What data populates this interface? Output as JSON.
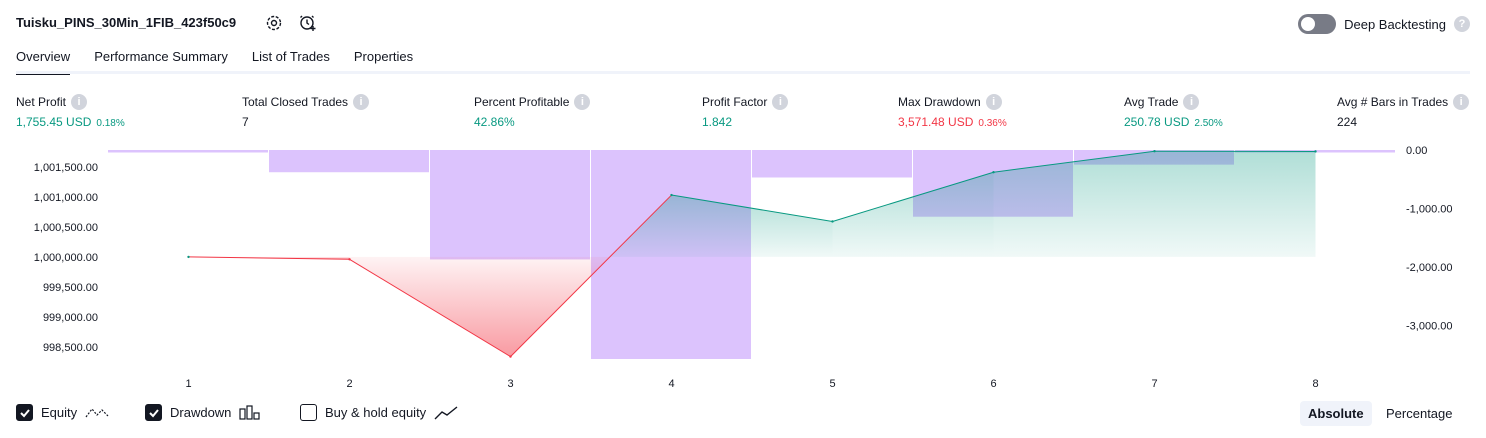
{
  "header": {
    "title": "Tuisku_PINS_30Min_1FIB_423f50c9",
    "deep_backtesting_label": "Deep Backtesting",
    "deep_backtesting_on": false
  },
  "tabs": [
    {
      "label": "Overview",
      "active": true
    },
    {
      "label": "Performance Summary"
    },
    {
      "label": "List of Trades"
    },
    {
      "label": "Properties"
    }
  ],
  "stats": {
    "net_profit": {
      "label": "Net Profit",
      "value": "1,755.45 USD",
      "pct": "0.18%"
    },
    "total_closed_trades": {
      "label": "Total Closed Trades",
      "value": "7"
    },
    "percent_profitable": {
      "label": "Percent Profitable",
      "value": "42.86%"
    },
    "profit_factor": {
      "label": "Profit Factor",
      "value": "1.842"
    },
    "max_drawdown": {
      "label": "Max Drawdown",
      "value": "3,571.48 USD",
      "pct": "0.36%"
    },
    "avg_trade": {
      "label": "Avg Trade",
      "value": "250.78 USD",
      "pct": "2.50%"
    },
    "avg_bars": {
      "label": "Avg # Bars in Trades",
      "value": "224"
    }
  },
  "chart_data": {
    "type": "line",
    "x": [
      1,
      2,
      3,
      4,
      5,
      6,
      7,
      8
    ],
    "x_tick_labels": [
      "1",
      "2",
      "3",
      "4",
      "5",
      "6",
      "7",
      "8"
    ],
    "series": [
      {
        "name": "Equity",
        "axis": "left",
        "values": [
          1000000.0,
          999960,
          998340,
          1001030,
          1000590,
          1001410,
          1001760,
          1001755.45
        ]
      },
      {
        "name": "Drawdown",
        "axis": "right",
        "type": "bar",
        "values": [
          0,
          -380,
          -1870,
          -3571.48,
          -470,
          -1140,
          -250,
          -30
        ]
      }
    ],
    "left_axis": {
      "ylim": [
        998300,
        1001780
      ],
      "ticks": [
        1001500,
        1001000,
        1000500,
        1000000,
        999500,
        999000,
        998500
      ],
      "tick_labels": [
        "1,001,500.00",
        "1,001,000.00",
        "1,000,500.00",
        "1,000,000.00",
        "999,500.00",
        "999,000.00",
        "998,500.00"
      ]
    },
    "right_axis": {
      "ylim": [
        -3571.48,
        0
      ],
      "ticks": [
        0,
        -1000,
        -2000,
        -3000
      ],
      "tick_labels": [
        "0.00",
        "-1,000.00",
        "-2,000.00",
        "-3,000.00"
      ]
    },
    "baseline": 1000000.0,
    "colors": {
      "profit": "#089981",
      "loss": "#f23645",
      "drawdown": "#c49bfb"
    }
  },
  "legend": {
    "equity": {
      "label": "Equity",
      "checked": true
    },
    "drawdown": {
      "label": "Drawdown",
      "checked": true
    },
    "buy_hold": {
      "label": "Buy & hold equity",
      "checked": false
    }
  },
  "modes": {
    "absolute": "Absolute",
    "percentage": "Percentage",
    "selected": "absolute"
  }
}
